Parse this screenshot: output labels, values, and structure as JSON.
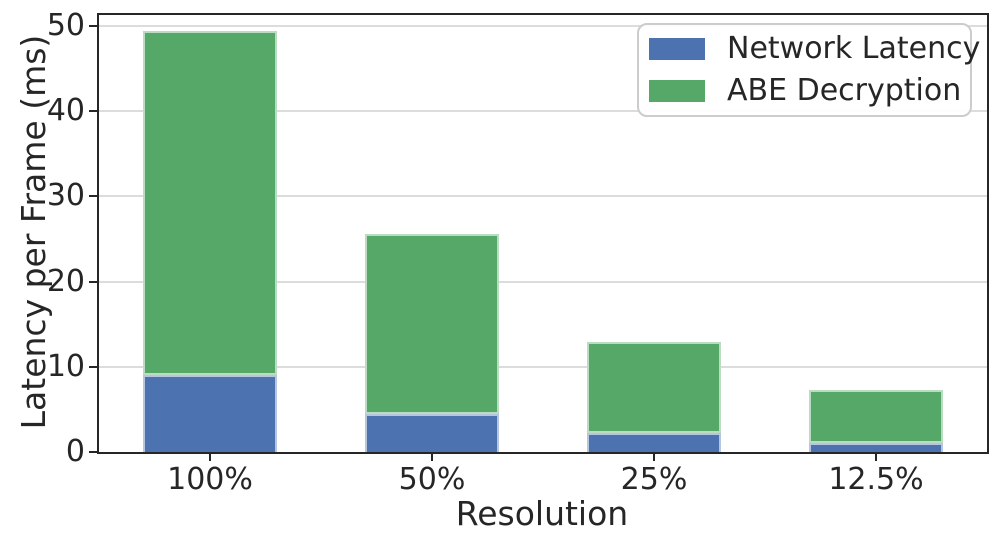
{
  "figure": {
    "background": "#ffffff",
    "text_color": "#262626",
    "spine_color": "#262626",
    "grid_color": "#dcdcdc",
    "bar_edge_color": "rgba(255,255,255,0.6)",
    "legend_border_color": "#cccccc"
  },
  "chart_data": {
    "type": "bar",
    "stacked": true,
    "title": "",
    "xlabel": "Resolution",
    "ylabel": "Latency per Frame (ms)",
    "categories": [
      "100%",
      "50%",
      "25%",
      "12.5%"
    ],
    "series": [
      {
        "name": "Network Latency",
        "color": "#4C72B0",
        "values": [
          9.0,
          4.5,
          2.2,
          1.1
        ]
      },
      {
        "name": "ABE Decryption",
        "color": "#55A868",
        "values": [
          40.4,
          21.1,
          10.7,
          6.2
        ]
      }
    ],
    "totals": [
      49.4,
      25.6,
      12.9,
      7.3
    ],
    "ylim": [
      0,
      51.3
    ],
    "yticks": [
      0,
      10,
      20,
      30,
      40,
      50
    ],
    "grid": "horizontal",
    "legend_position": "upper right"
  }
}
